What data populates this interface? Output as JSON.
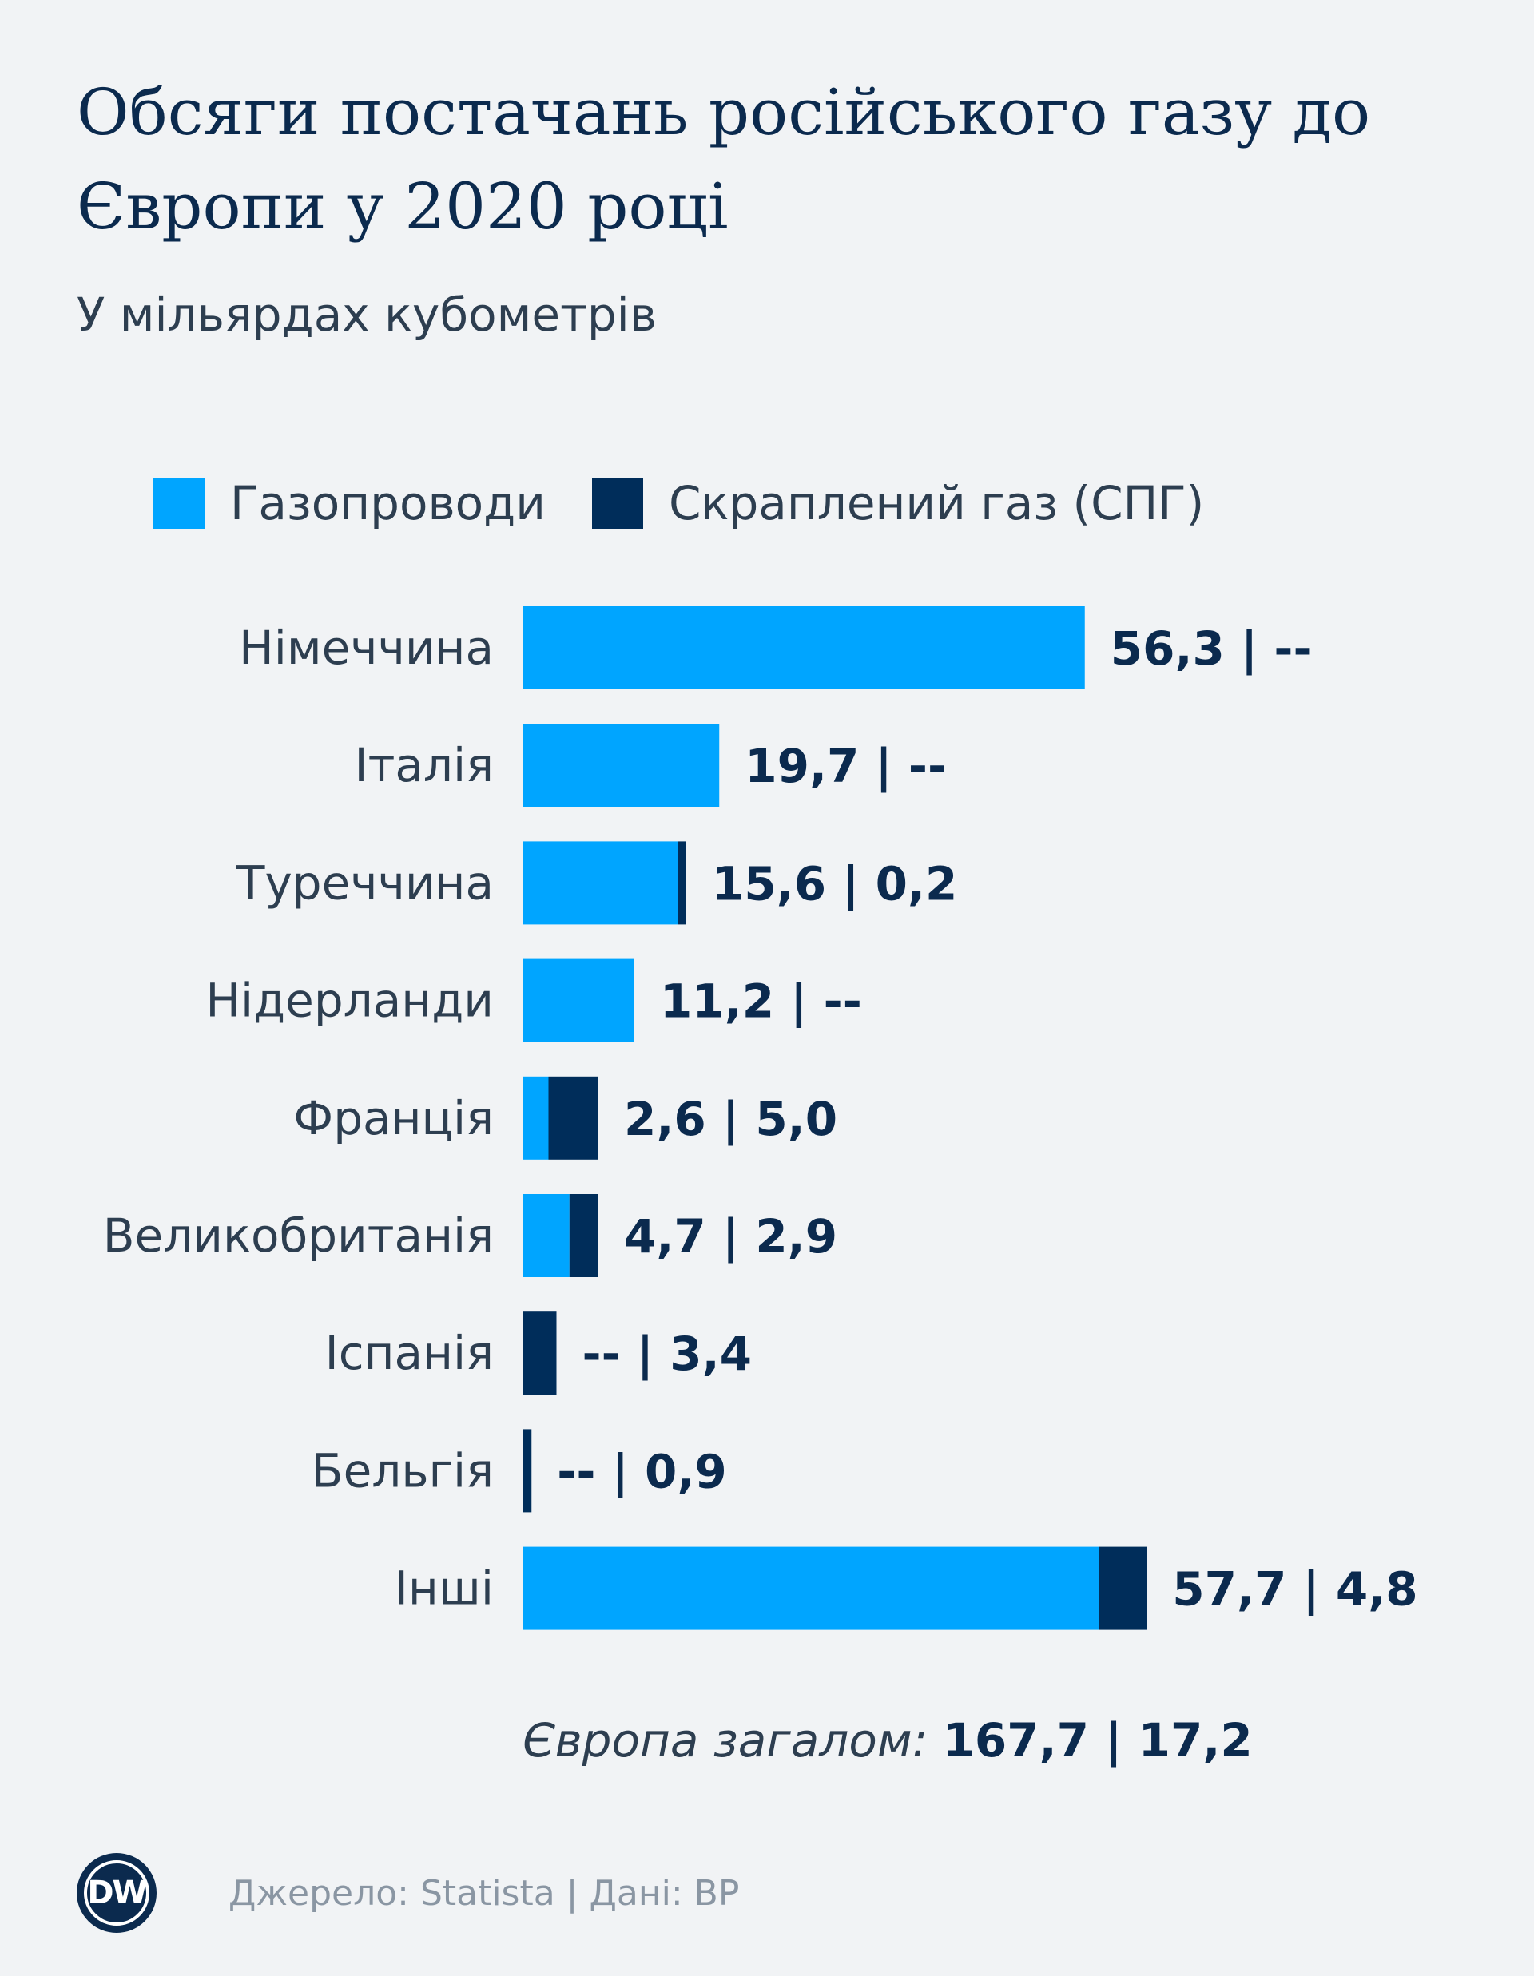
{
  "title": "Обсяги постачань російського газу до Європи у 2020 році",
  "subtitle": "У мільярдах кубометрів",
  "legend": {
    "pipeline": "Газопроводи",
    "lng": "Скраплений газ (СПГ)"
  },
  "colors": {
    "pipeline": "#00a5ff",
    "lng": "#002d5a",
    "label": "#2d3e50",
    "value": "#0b2a4e"
  },
  "chart_data": {
    "type": "bar",
    "orientation": "horizontal",
    "stacked": true,
    "categories": [
      "Німеччина",
      "Італія",
      "Туреччина",
      "Нідерланди",
      "Франція",
      "Великобританія",
      "Іспанія",
      "Бельгія",
      "Інші"
    ],
    "series": [
      {
        "name": "Газопроводи",
        "values": [
          56.3,
          19.7,
          15.6,
          11.2,
          2.6,
          4.7,
          0,
          0,
          57.7
        ]
      },
      {
        "name": "Скраплений газ (СПГ)",
        "values": [
          0,
          0,
          0.2,
          0,
          5.0,
          2.9,
          3.4,
          0.9,
          4.8
        ]
      }
    ],
    "data_labels": [
      "56,3 | --",
      "19,7 | --",
      "15,6 | 0,2",
      "11,2 | --",
      "2,6 | 5,0",
      "4,7 | 2,9",
      "-- | 3,4",
      "-- | 0,9",
      "57,7 | 4,8"
    ],
    "xlim": [
      0,
      65
    ],
    "grid": false,
    "legend_position": "top-left"
  },
  "total": {
    "label": "Європа загалом:",
    "value": "167,7 | 17,2"
  },
  "footer": {
    "logo": "DW",
    "source": "Джерело: Statista | Дані: BP"
  }
}
